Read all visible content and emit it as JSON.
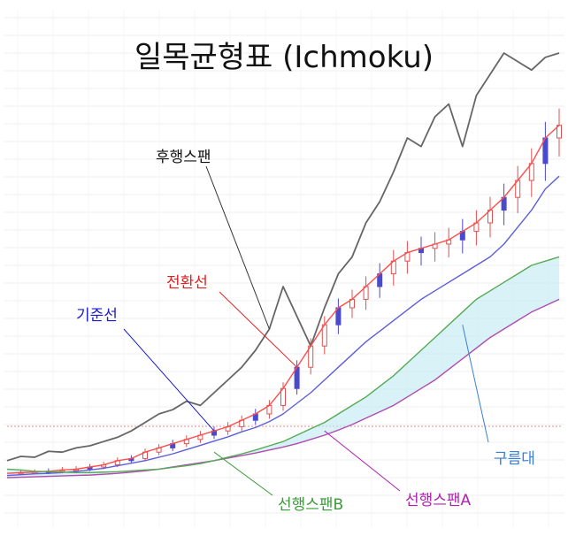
{
  "chart_data": {
    "type": "line",
    "title": "일목균형표 (Ichmoku)",
    "subtitle": "",
    "xlabel": "",
    "ylabel": "",
    "grid": true,
    "ylim": [
      0,
      1000
    ],
    "x": [
      0,
      4,
      8,
      12,
      16,
      20,
      24,
      28,
      32,
      36,
      40,
      44,
      48,
      52,
      56,
      60,
      64,
      68,
      72,
      76,
      80,
      84,
      88,
      92,
      96,
      100,
      104,
      108,
      112,
      116,
      120,
      124,
      128,
      132,
      136,
      140,
      144,
      148,
      152,
      156,
      160
    ],
    "series": [
      {
        "name": "후행스팬",
        "color": "#666666",
        "values": [
          40,
          50,
          48,
          62,
          60,
          70,
          75,
          85,
          95,
          110,
          130,
          150,
          160,
          180,
          170,
          200,
          230,
          260,
          300,
          350,
          450,
          380,
          310,
          400,
          480,
          520,
          600,
          650,
          720,
          800,
          780,
          850,
          880,
          780,
          900,
          950,
          1000,
          980,
          960,
          990,
          1000
        ]
      },
      {
        "name": "전환선",
        "color": "#ff4d4d",
        "values": [
          10,
          12,
          13,
          15,
          18,
          20,
          25,
          30,
          40,
          45,
          60,
          70,
          80,
          90,
          100,
          110,
          120,
          135,
          150,
          170,
          210,
          260,
          310,
          360,
          400,
          420,
          450,
          480,
          510,
          530,
          540,
          550,
          560,
          580,
          600,
          630,
          660,
          700,
          740,
          800,
          830
        ]
      },
      {
        "name": "기준선",
        "color": "#5e5edb",
        "values": [
          5,
          7,
          9,
          10,
          12,
          15,
          18,
          22,
          28,
          34,
          40,
          48,
          56,
          66,
          76,
          86,
          96,
          108,
          118,
          132,
          150,
          175,
          200,
          230,
          260,
          290,
          320,
          345,
          370,
          395,
          420,
          440,
          460,
          480,
          500,
          520,
          550,
          590,
          630,
          680,
          710
        ]
      },
      {
        "name": "선행스팬A",
        "color": "#b04bb0",
        "values": [
          0,
          1,
          2,
          3,
          4,
          5,
          6,
          8,
          10,
          13,
          16,
          20,
          25,
          30,
          35,
          40,
          46,
          52,
          58,
          65,
          72,
          80,
          90,
          100,
          112,
          125,
          140,
          155,
          170,
          190,
          210,
          230,
          255,
          280,
          305,
          330,
          350,
          370,
          390,
          405,
          420
        ]
      },
      {
        "name": "선행스팬B",
        "color": "#55aa55",
        "values": [
          20,
          18,
          15,
          14,
          13,
          12,
          12,
          13,
          14,
          16,
          18,
          20,
          24,
          28,
          33,
          40,
          48,
          56,
          65,
          75,
          85,
          100,
          115,
          130,
          150,
          170,
          190,
          215,
          240,
          270,
          300,
          330,
          360,
          390,
          420,
          440,
          460,
          480,
          500,
          510,
          520
        ]
      }
    ],
    "cloud_label": "구름대",
    "candles": {
      "up_color": "#e05050",
      "down_color": "#4a4acc",
      "note": ""
    }
  },
  "annotations": [
    {
      "id": "lagging",
      "text": "후행스팬",
      "color": "#111111"
    },
    {
      "id": "conversion",
      "text": "전환선",
      "color": "#e02020"
    },
    {
      "id": "base",
      "text": "기준선",
      "color": "#1a1acc"
    },
    {
      "id": "cloud",
      "text": "구름대",
      "color": "#3a7fd5"
    },
    {
      "id": "spanB",
      "text": "선행스팬B",
      "color": "#3a9a3a"
    },
    {
      "id": "spanA",
      "text": "선행스팬A",
      "color": "#b020b0"
    }
  ]
}
